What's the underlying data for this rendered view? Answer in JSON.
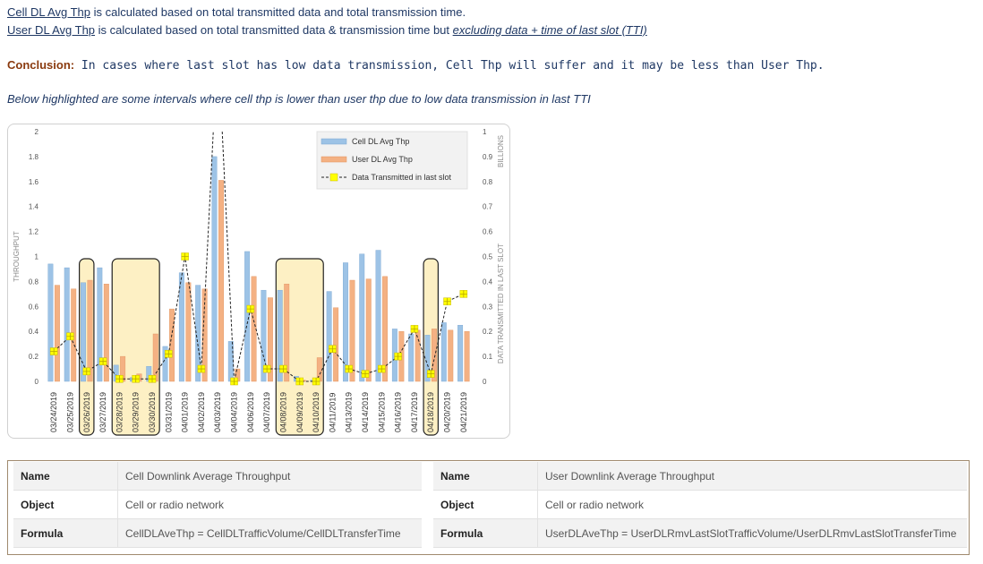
{
  "header": {
    "line1_term": "Cell DL Avg Thp",
    "line1_rest": " is calculated based on total transmitted data and total transmission time.",
    "line2_term": "User DL Avg Thp",
    "line2_rest": " is calculated based on total transmitted data & transmission time but ",
    "line2_em": "excluding data + time of last slot (TTI)",
    "conclusion_label": "Conclusion:",
    "conclusion_text": " In cases where last slot has low data transmission, Cell Thp will suffer and it may be less than User Thp.",
    "note": "Below highlighted are some intervals where cell thp is lower than user thp due to low data transmission in last TTI"
  },
  "colors": {
    "cell_bar": "#9dc3e6",
    "user_bar": "#f4b183",
    "highlight_fill": "#fdf0c4",
    "highlight_stroke": "#222222",
    "marker": "#ffff00",
    "text_blue": "#1f3864"
  },
  "chart_data": {
    "type": "bar",
    "categories": [
      "03/24/2019",
      "03/25/2019",
      "03/26/2019",
      "03/27/2019",
      "03/28/2019",
      "03/29/2019",
      "03/30/2019",
      "03/31/2019",
      "04/01/2019",
      "04/02/2019",
      "04/03/2019",
      "04/04/2019",
      "04/06/2019",
      "04/07/2019",
      "04/08/2019",
      "04/09/2019",
      "04/10/2019",
      "04/11/2019",
      "04/13/2019",
      "04/14/2019",
      "04/15/2019",
      "04/16/2019",
      "04/17/2019",
      "04/18/2019",
      "04/20/2019",
      "04/21/2019"
    ],
    "series": [
      {
        "name": "Cell DL Avg Thp",
        "kind": "bar",
        "axis": "left",
        "values": [
          0.94,
          0.91,
          0.79,
          0.91,
          0.13,
          0.03,
          0.12,
          0.28,
          0.87,
          0.77,
          1.8,
          0.32,
          1.04,
          0.73,
          0.73,
          0.04,
          0.01,
          0.72,
          0.95,
          1.02,
          1.05,
          0.42,
          0.38,
          0.37,
          0.47,
          0.45
        ]
      },
      {
        "name": "User DL Avg Thp",
        "kind": "bar",
        "axis": "left",
        "values": [
          0.77,
          0.74,
          0.81,
          0.78,
          0.2,
          0.06,
          0.38,
          0.58,
          0.79,
          0.74,
          1.61,
          0.1,
          0.84,
          0.67,
          0.78,
          0.01,
          0.19,
          0.59,
          0.81,
          0.82,
          0.84,
          0.4,
          0.41,
          0.42,
          0.41,
          0.4
        ]
      },
      {
        "name": "Data Transmitted in last slot",
        "kind": "line",
        "axis": "right",
        "values": [
          0.12,
          0.18,
          0.04,
          0.08,
          0.01,
          0.01,
          0.01,
          0.11,
          0.5,
          0.05,
          null,
          0.0,
          0.29,
          0.05,
          0.05,
          0.0,
          0.0,
          0.13,
          0.05,
          0.03,
          0.05,
          0.1,
          0.21,
          0.03,
          0.32,
          0.35
        ]
      }
    ],
    "ylabel": "THROUGHPUT",
    "y2label": "DATA TRANSMITTED IN LAST SLOT",
    "y2unit": "BILLIONS",
    "ylim": [
      0,
      2
    ],
    "y2lim": [
      0,
      1
    ],
    "yticks": [
      "0",
      "0.2",
      "0.4",
      "0.6",
      "0.8",
      "1",
      "1.2",
      "1.4",
      "1.6",
      "1.8",
      "2"
    ],
    "y2ticks": [
      "0",
      "0.1",
      "0.2",
      "0.3",
      "0.4",
      "0.5",
      "0.6",
      "0.7",
      "0.8",
      "0.9",
      "1"
    ],
    "legend_position": "top-right",
    "highlighted_categories": [
      [
        "03/26/2019"
      ],
      [
        "03/28/2019",
        "03/29/2019",
        "03/30/2019"
      ],
      [
        "04/08/2019",
        "04/09/2019",
        "04/10/2019"
      ],
      [
        "04/18/2019"
      ]
    ]
  },
  "tables": {
    "left": [
      {
        "key": "Name",
        "value": "Cell Downlink Average Throughput"
      },
      {
        "key": "Object",
        "value": "Cell or radio network"
      },
      {
        "key": "Formula",
        "value": "CellDLAveThp = CellDLTrafficVolume/CellDLTransferTime"
      }
    ],
    "right": [
      {
        "key": "Name",
        "value": "User Downlink Average Throughput"
      },
      {
        "key": "Object",
        "value": "Cell or radio network"
      },
      {
        "key": "Formula",
        "value": "UserDLAveThp = UserDLRmvLastSlotTrafficVolume/UserDLRmvLastSlotTransferTime"
      }
    ]
  }
}
